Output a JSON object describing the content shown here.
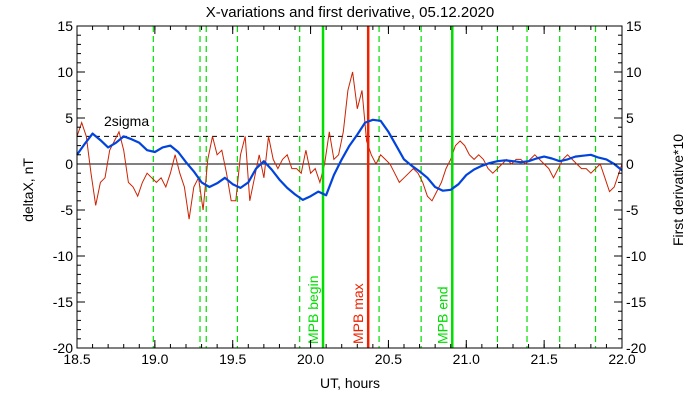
{
  "chart_data": {
    "type": "line",
    "title": "X-variations and first derivative, 05.12.2020",
    "xlabel": "UT, hours",
    "ylabel_left": "deltaX, nT",
    "ylabel_right": "First derivative*10",
    "xlim": [
      18.5,
      22.0
    ],
    "ylim": [
      -20,
      15
    ],
    "x_ticks": [
      "18.5",
      "19.0",
      "19.5",
      "20.0",
      "20.5",
      "21.0",
      "21.5",
      "22.0"
    ],
    "y_ticks": [
      "15",
      "10",
      "5",
      "0",
      "-5",
      "-10",
      "-15",
      "-20"
    ],
    "threshold": {
      "label": "2sigma",
      "value": 3.0
    },
    "colors": {
      "deltaX": "#0044dd",
      "derivative": "#cc2200",
      "marker_green": "#00dd00",
      "marker_red": "#ee2200",
      "threshold": "#000000"
    },
    "dashed_green_lines": [
      18.99,
      19.29,
      19.33,
      19.53,
      19.93,
      20.44,
      20.71,
      21.2,
      21.39,
      21.6,
      21.83
    ],
    "markers": [
      {
        "x": 20.08,
        "label": "MPB begin",
        "color": "#00dd00"
      },
      {
        "x": 20.37,
        "label": "MPB max",
        "color": "#ee2200"
      },
      {
        "x": 20.91,
        "label": "MPB end",
        "color": "#00dd00"
      }
    ],
    "series": [
      {
        "name": "deltaX",
        "x": [
          18.5,
          18.55,
          18.6,
          18.65,
          18.7,
          18.75,
          18.8,
          18.85,
          18.9,
          18.95,
          19.0,
          19.05,
          19.1,
          19.15,
          19.2,
          19.25,
          19.3,
          19.35,
          19.4,
          19.45,
          19.5,
          19.55,
          19.6,
          19.65,
          19.7,
          19.75,
          19.8,
          19.85,
          19.9,
          19.95,
          20.0,
          20.05,
          20.1,
          20.15,
          20.2,
          20.25,
          20.3,
          20.35,
          20.4,
          20.45,
          20.5,
          20.55,
          20.6,
          20.65,
          20.7,
          20.75,
          20.8,
          20.85,
          20.9,
          20.95,
          21.0,
          21.05,
          21.1,
          21.15,
          21.2,
          21.25,
          21.3,
          21.35,
          21.4,
          21.45,
          21.5,
          21.55,
          21.6,
          21.65,
          21.7,
          21.75,
          21.8,
          21.85,
          21.9,
          21.95,
          22.0
        ],
        "y": [
          1.0,
          2.2,
          3.3,
          2.6,
          1.8,
          2.3,
          3.0,
          2.7,
          2.3,
          1.5,
          1.3,
          1.8,
          2.0,
          1.3,
          0.2,
          -0.8,
          -2.0,
          -2.5,
          -2.1,
          -1.5,
          -2.2,
          -2.6,
          -2.0,
          -0.5,
          0.3,
          -0.6,
          -1.7,
          -2.6,
          -3.3,
          -3.9,
          -3.5,
          -3.0,
          -3.4,
          -1.2,
          0.5,
          2.0,
          3.2,
          4.5,
          4.8,
          4.7,
          3.5,
          2.0,
          0.5,
          -0.2,
          -0.8,
          -1.5,
          -2.5,
          -2.9,
          -2.8,
          -2.2,
          -1.2,
          -0.6,
          -0.2,
          0.1,
          0.3,
          0.4,
          0.3,
          0.2,
          0.3,
          0.6,
          0.8,
          0.6,
          0.3,
          0.5,
          0.8,
          0.9,
          1.0,
          0.7,
          0.5,
          0.0,
          -0.7
        ]
      },
      {
        "name": "First derivative*10",
        "x": [
          18.5,
          18.53,
          18.56,
          18.59,
          18.62,
          18.65,
          18.68,
          18.71,
          18.74,
          18.77,
          18.8,
          18.83,
          18.86,
          18.89,
          18.92,
          18.95,
          18.98,
          19.01,
          19.04,
          19.07,
          19.1,
          19.13,
          19.16,
          19.19,
          19.22,
          19.25,
          19.28,
          19.31,
          19.34,
          19.37,
          19.4,
          19.43,
          19.46,
          19.49,
          19.52,
          19.55,
          19.58,
          19.61,
          19.64,
          19.67,
          19.7,
          19.73,
          19.76,
          19.79,
          19.82,
          19.85,
          19.88,
          19.91,
          19.94,
          19.97,
          20.0,
          20.03,
          20.06,
          20.09,
          20.12,
          20.15,
          20.18,
          20.21,
          20.24,
          20.27,
          20.3,
          20.33,
          20.36,
          20.39,
          20.42,
          20.45,
          20.48,
          20.51,
          20.54,
          20.57,
          20.6,
          20.63,
          20.66,
          20.69,
          20.72,
          20.75,
          20.78,
          20.81,
          20.84,
          20.87,
          20.9,
          20.93,
          20.96,
          20.99,
          21.02,
          21.05,
          21.08,
          21.11,
          21.14,
          21.17,
          21.2,
          21.23,
          21.26,
          21.29,
          21.32,
          21.35,
          21.38,
          21.41,
          21.44,
          21.47,
          21.5,
          21.53,
          21.56,
          21.59,
          21.62,
          21.65,
          21.68,
          21.71,
          21.74,
          21.77,
          21.8,
          21.83,
          21.86,
          21.89,
          21.92,
          21.95,
          21.98,
          22.0
        ],
        "y": [
          3.0,
          4.5,
          3.0,
          -1.0,
          -4.5,
          -2.0,
          -1.5,
          1.5,
          2.5,
          3.5,
          1.5,
          -2.0,
          -2.5,
          -3.5,
          -2.0,
          -1.0,
          -1.5,
          -2.0,
          -1.5,
          -2.5,
          -1.0,
          1.0,
          -1.0,
          -2.5,
          -6.0,
          -2.5,
          -1.5,
          -5.0,
          0.5,
          3.0,
          1.0,
          1.5,
          -1.0,
          -4.0,
          -4.0,
          1.0,
          3.0,
          -4.0,
          -1.5,
          1.0,
          -1.5,
          3.0,
          0.5,
          -0.5,
          0.5,
          1.0,
          -0.5,
          -0.5,
          -1.0,
          1.5,
          -1.0,
          -0.5,
          -2.0,
          0.0,
          3.5,
          0.5,
          1.0,
          3.5,
          8.0,
          10.0,
          6.0,
          8.0,
          2.5,
          1.0,
          0.0,
          1.0,
          0.5,
          0.0,
          -1.0,
          -2.0,
          -1.5,
          -1.0,
          -0.5,
          -1.0,
          -2.0,
          -3.5,
          -4.0,
          -3.0,
          -2.0,
          -0.5,
          0.5,
          2.0,
          2.5,
          2.0,
          1.0,
          0.5,
          1.0,
          0.5,
          -0.5,
          -1.0,
          -0.5,
          0.0,
          0.5,
          0.0,
          0.5,
          0.5,
          0.0,
          0.5,
          1.0,
          0.5,
          0.0,
          -0.5,
          -1.5,
          -0.5,
          0.5,
          1.0,
          0.5,
          0.0,
          -0.5,
          -0.5,
          -1.0,
          -0.5,
          0.0,
          -1.5,
          -3.0,
          -2.5,
          -1.0,
          0.0
        ]
      }
    ]
  }
}
